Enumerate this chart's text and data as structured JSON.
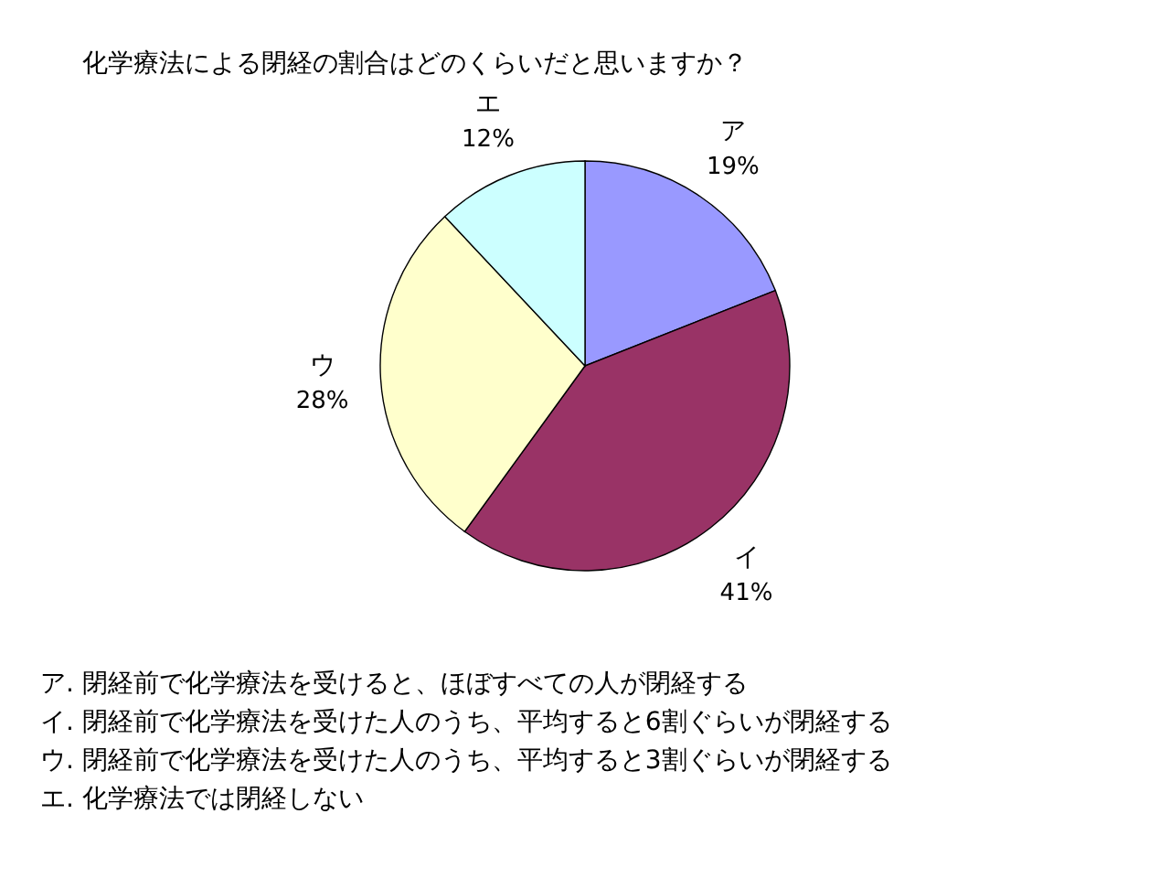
{
  "chart_data": {
    "type": "pie",
    "title": "化学療法による閉経の割合はどのくらいだと思いますか？",
    "categories": [
      "ア",
      "イ",
      "ウ",
      "エ"
    ],
    "values": [
      19,
      41,
      28,
      12
    ],
    "colors": [
      "#9999ff",
      "#993366",
      "#ffffcc",
      "#ccffff"
    ],
    "value_labels": [
      "19%",
      "41%",
      "28%",
      "12%"
    ],
    "annotations": [
      "ア. 閉経前で化学療法を受けると、ほぼすべての人が閉経する",
      "イ. 閉経前で化学療法を受けた人のうち、平均すると6割ぐらいが閉経する",
      "ウ. 閉経前で化学療法を受けた人のうち、平均すると3割ぐらいが閉経する",
      "エ. 化学療法では閉経しない"
    ]
  }
}
